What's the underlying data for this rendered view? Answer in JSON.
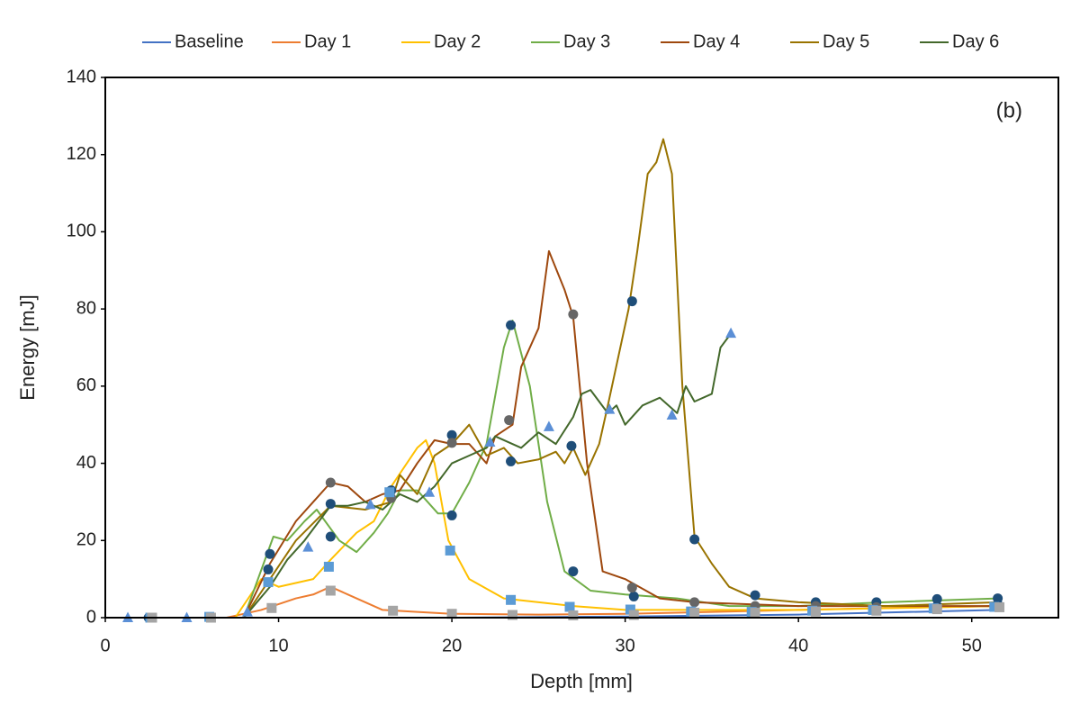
{
  "chart_data": {
    "type": "line",
    "annotation": "(b)",
    "xlabel": "Depth [mm]",
    "ylabel": "Energy [mJ]",
    "xlim": [
      0,
      55
    ],
    "ylim": [
      0,
      140
    ],
    "xticks": [
      0,
      10,
      20,
      30,
      40,
      50
    ],
    "yticks": [
      0,
      20,
      40,
      60,
      80,
      100,
      120,
      140
    ],
    "legend": "top",
    "series": [
      {
        "name": "Baseline",
        "color": "#4472c4",
        "x": [
          0,
          10,
          20,
          30,
          40,
          51.5
        ],
        "values": [
          0,
          0,
          0,
          0.3,
          0.8,
          2
        ]
      },
      {
        "name": "Day 1",
        "color": "#ed7d31",
        "x": [
          0,
          7,
          9,
          11,
          12,
          13,
          14,
          16,
          18,
          20,
          25,
          30,
          35,
          40,
          45,
          51.5
        ],
        "values": [
          0,
          0,
          2,
          5,
          6,
          8,
          6,
          2,
          1.5,
          1,
          0.8,
          1,
          1.5,
          2,
          2.5,
          3
        ]
      },
      {
        "name": "Day 2",
        "color": "#ffc000",
        "x": [
          0,
          7.5,
          9,
          10,
          12,
          13,
          14.5,
          15.5,
          16.5,
          18,
          18.5,
          19,
          19.8,
          21,
          23,
          27,
          30,
          40,
          51.5
        ],
        "values": [
          0,
          0,
          10,
          8,
          10,
          15,
          22,
          25,
          34,
          44,
          46,
          40,
          20,
          10,
          5,
          3,
          2,
          2,
          3
        ]
      },
      {
        "name": "Day 3",
        "color": "#70ad47",
        "x": [
          0,
          8,
          9.7,
          10.5,
          11.5,
          12.2,
          13.5,
          14.5,
          15.5,
          16.3,
          17,
          18,
          19.2,
          20,
          21,
          22,
          23,
          23.5,
          24.5,
          25.5,
          26.5,
          28,
          30,
          33,
          36,
          40,
          45,
          51.5
        ],
        "values": [
          0,
          0,
          21,
          20,
          25,
          28,
          20,
          17,
          22,
          27,
          33,
          33,
          27,
          27,
          35,
          45,
          70,
          77,
          60,
          30,
          12,
          7,
          6,
          5,
          3,
          3,
          4,
          5
        ]
      },
      {
        "name": "Day 4",
        "color": "#9e480e",
        "x": [
          0,
          8,
          9.5,
          11,
          12,
          13,
          14,
          15,
          16,
          17,
          18,
          19,
          20,
          21,
          22,
          22.5,
          23.5,
          24,
          25,
          25.6,
          26.5,
          27,
          27.8,
          28.7,
          30,
          32,
          34,
          40,
          51.5
        ],
        "values": [
          0,
          0,
          14,
          25,
          30,
          35,
          34,
          30,
          32,
          33,
          40,
          46,
          45,
          45,
          40,
          47,
          50,
          65,
          75,
          95,
          85,
          78,
          40,
          12,
          10,
          5,
          4,
          3,
          3
        ]
      },
      {
        "name": "Day 5",
        "color": "#997300",
        "x": [
          0,
          8,
          9.5,
          11,
          13,
          15,
          16.5,
          17,
          18,
          19,
          20,
          21,
          22,
          23,
          23.8,
          25,
          26,
          26.5,
          27,
          27.7,
          28.5,
          29,
          30.2,
          30.7,
          31.3,
          31.8,
          32.2,
          32.7,
          33.3,
          34,
          35,
          36,
          37.5,
          40,
          45,
          51.5
        ],
        "values": [
          0,
          0,
          10,
          20,
          29,
          28,
          30,
          37,
          32,
          42,
          45,
          50,
          42,
          44,
          40,
          41,
          43,
          40,
          44,
          37,
          45,
          55,
          80,
          95,
          115,
          118,
          124,
          115,
          60,
          21,
          14,
          8,
          5,
          4,
          3,
          4
        ]
      },
      {
        "name": "Day 6",
        "color": "#43682b",
        "x": [
          0,
          8,
          9.5,
          10.5,
          11.5,
          13,
          14,
          15,
          16,
          17,
          18,
          19,
          20,
          21,
          22,
          22.5,
          24,
          25,
          26,
          27,
          27.5,
          28,
          29,
          29.5,
          30,
          31,
          32,
          33,
          33.5,
          34,
          35,
          35.5,
          36
        ],
        "values": [
          0,
          0,
          8,
          15,
          20,
          29,
          29,
          30,
          28,
          32,
          30,
          34,
          40,
          42,
          44,
          47,
          44,
          48,
          45,
          52,
          58,
          59,
          53,
          55,
          50,
          55,
          57,
          53,
          60,
          56,
          58,
          70,
          73
        ]
      }
    ],
    "markers": [
      {
        "shape": "circle",
        "color": "#1f4e79",
        "x": [
          2.5,
          6,
          9.5,
          9.4,
          13,
          13,
          16.5,
          20,
          20,
          23.4,
          23.4,
          26.9,
          27,
          30.4,
          30.5,
          34,
          37.5,
          41,
          44.5,
          48,
          51.5,
          51.5,
          48
        ],
        "values": [
          0,
          0,
          16.5,
          12.5,
          29.5,
          21,
          33,
          47.3,
          26.5,
          75.8,
          40.5,
          44.5,
          12,
          82,
          5.5,
          20.3,
          5.8,
          4,
          4,
          4.8,
          5,
          3.5,
          3
        ]
      },
      {
        "shape": "circle",
        "color": "#666666",
        "x": [
          13,
          16.5,
          20,
          23.3,
          27,
          30.4,
          34,
          37.5,
          41,
          44.5,
          48
        ],
        "values": [
          35,
          31,
          45.3,
          51.2,
          78.6,
          7.8,
          4,
          3,
          3,
          2.7,
          2.5
        ]
      },
      {
        "shape": "triangle",
        "color": "#5b8fd6",
        "x": [
          1.3,
          4.7,
          8.2,
          11.7,
          15.3,
          18.7,
          22.2,
          25.6,
          29.1,
          32.7,
          36.1
        ],
        "values": [
          0,
          0,
          1.5,
          18.3,
          29.3,
          32.5,
          45.5,
          49.5,
          54,
          52.5,
          73.7
        ]
      },
      {
        "shape": "square",
        "color": "#5b9bd5",
        "x": [
          2.6,
          6,
          9.4,
          12.9,
          16.4,
          19.9,
          23.4,
          26.8,
          30.3,
          33.8,
          37.3,
          40.8,
          44.3,
          47.8,
          51.3
        ],
        "values": [
          0,
          0.2,
          9.2,
          13.2,
          32.5,
          17.4,
          4.6,
          2.8,
          2.1,
          1.6,
          1.5,
          1.8,
          2,
          2.4,
          2.8
        ]
      },
      {
        "shape": "square",
        "color": "#a5a5a5",
        "x": [
          2.7,
          6.1,
          9.6,
          13,
          16.6,
          20,
          23.5,
          27,
          30.5,
          34,
          37.5,
          41,
          44.5,
          48,
          51.6
        ],
        "values": [
          0,
          0,
          2.5,
          7,
          1.8,
          1,
          0.7,
          0.6,
          0.7,
          1.3,
          1.3,
          1.6,
          1.8,
          2.2,
          2.7
        ]
      }
    ]
  }
}
